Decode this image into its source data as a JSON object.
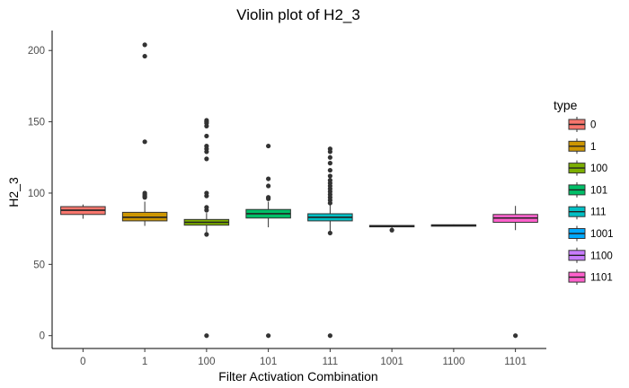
{
  "chart_data": {
    "type": "box",
    "title": "Violin plot of H2_3",
    "xlabel": "Filter Activation Combination",
    "ylabel": "H2_3",
    "ylim": [
      -9,
      214
    ],
    "yticks": [
      0,
      50,
      100,
      150,
      200
    ],
    "categories": [
      "0",
      "1",
      "100",
      "101",
      "111",
      "1001",
      "1100",
      "1101"
    ],
    "legend": {
      "title": "type",
      "position": "right",
      "entries": [
        "0",
        "1",
        "100",
        "101",
        "111",
        "1001",
        "1100",
        "1101"
      ]
    },
    "colors": [
      "#F8766D",
      "#CD9600",
      "#7CAE00",
      "#00BE67",
      "#00BFC4",
      "#00A9FF",
      "#C77CFF",
      "#FF61CC"
    ],
    "boxes": [
      {
        "category": "0",
        "lower_whisker": 82,
        "q1": 85,
        "median": 88,
        "q3": 90.5,
        "upper_whisker": 92,
        "outliers": []
      },
      {
        "category": "1",
        "lower_whisker": 77,
        "q1": 80.5,
        "median": 83,
        "q3": 86.5,
        "upper_whisker": 94,
        "outliers": [
          99,
          98,
          97,
          100,
          136,
          196,
          204
        ]
      },
      {
        "category": "100",
        "lower_whisker": 72,
        "q1": 77.5,
        "median": 79.5,
        "q3": 81.5,
        "upper_whisker": 86,
        "outliers": [
          0,
          71,
          88,
          90,
          98,
          100,
          124,
          129,
          131,
          133,
          140,
          147,
          149,
          150,
          151
        ]
      },
      {
        "category": "101",
        "lower_whisker": 76,
        "q1": 82.5,
        "median": 85.5,
        "q3": 88.5,
        "upper_whisker": 94,
        "outliers": [
          0,
          96,
          97,
          105,
          110,
          133
        ]
      },
      {
        "category": "111",
        "lower_whisker": 73,
        "q1": 80.5,
        "median": 83,
        "q3": 85.5,
        "upper_whisker": 92,
        "outliers": [
          0,
          72,
          93,
          95,
          97,
          99,
          101,
          103,
          105,
          107,
          109,
          112,
          116,
          121,
          125,
          129,
          131
        ]
      },
      {
        "category": "1001",
        "lower_whisker": 75.5,
        "q1": 76.3,
        "median": 76.8,
        "q3": 77.3,
        "upper_whisker": 77.6,
        "outliers": [
          74
        ]
      },
      {
        "category": "1100",
        "lower_whisker": 77,
        "q1": 77.3,
        "median": 77.5,
        "q3": 77.7,
        "upper_whisker": 78,
        "outliers": []
      },
      {
        "category": "1101",
        "lower_whisker": 74,
        "q1": 79.5,
        "median": 82.5,
        "q3": 85,
        "upper_whisker": 91,
        "outliers": [
          0
        ]
      }
    ]
  }
}
